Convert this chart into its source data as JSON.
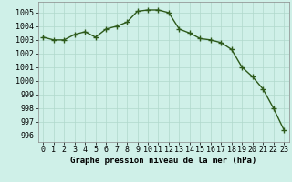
{
  "x": [
    0,
    1,
    2,
    3,
    4,
    5,
    6,
    7,
    8,
    9,
    10,
    11,
    12,
    13,
    14,
    15,
    16,
    17,
    18,
    19,
    20,
    21,
    22,
    23
  ],
  "y": [
    1003.2,
    1003.0,
    1003.0,
    1003.4,
    1003.6,
    1003.2,
    1003.8,
    1004.0,
    1004.3,
    1005.1,
    1005.2,
    1005.2,
    1005.0,
    1003.8,
    1003.5,
    1003.1,
    1003.0,
    1002.8,
    1002.3,
    1001.0,
    1000.3,
    999.4,
    998.0,
    996.4
  ],
  "line_color": "#2d5a1b",
  "marker": "+",
  "marker_size": 4,
  "marker_edge_width": 1.0,
  "background_color": "#cff0e8",
  "grid_color": "#b0d8cc",
  "xlabel": "Graphe pression niveau de la mer (hPa)",
  "xlabel_fontsize": 6.5,
  "tick_fontsize": 6.0,
  "ylim": [
    995.5,
    1005.8
  ],
  "yticks": [
    996,
    997,
    998,
    999,
    1000,
    1001,
    1002,
    1003,
    1004,
    1005
  ],
  "xticks": [
    0,
    1,
    2,
    3,
    4,
    5,
    6,
    7,
    8,
    9,
    10,
    11,
    12,
    13,
    14,
    15,
    16,
    17,
    18,
    19,
    20,
    21,
    22,
    23
  ],
  "line_width": 1.0,
  "spine_color": "#888888"
}
